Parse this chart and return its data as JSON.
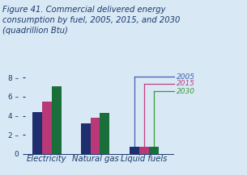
{
  "title_lines": [
    "Figure 41. Commercial delivered energy",
    "consumption by fuel, 2005, 2015, and 2030",
    "(quadrillion Btu)"
  ],
  "categories": [
    "Electricity",
    "Natural gas",
    "Liquid fuels"
  ],
  "years": [
    "2005",
    "2015",
    "2030"
  ],
  "values": {
    "2005": [
      4.35,
      3.2,
      0.72
    ],
    "2015": [
      5.45,
      3.75,
      0.75
    ],
    "2030": [
      7.1,
      4.3,
      0.72
    ]
  },
  "bar_colors": {
    "2005": "#1e2e6e",
    "2015": "#b83878",
    "2030": "#1a6e3a"
  },
  "legend_line_colors": {
    "2005": "#4060b0",
    "2015": "#c04080",
    "2030": "#3a9a3a"
  },
  "legend_label_colors": {
    "2005": "#4060b0",
    "2015": "#c04080",
    "2030": "#3a9a3a"
  },
  "ylim": [
    0,
    8.6
  ],
  "yticks": [
    0,
    2,
    4,
    6,
    8
  ],
  "background_color": "#d8e8f4",
  "title_color": "#1a3a6e",
  "axis_label_color": "#1a3a6e",
  "title_fontsize": 7.2,
  "tick_fontsize": 6.5,
  "xlabel_fontsize": 7.2
}
